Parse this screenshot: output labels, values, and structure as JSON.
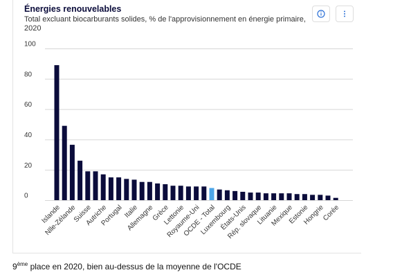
{
  "chart_data": {
    "type": "bar",
    "title": "Énergies renouvelables",
    "subtitle": "Total excluant biocarburants solides, % de l'approvisionnement en énergie primaire, 2020",
    "categories": [
      "Islande",
      null,
      "Nlle-Zélande",
      null,
      "Suisse",
      null,
      "Autriche",
      null,
      "Portugal",
      null,
      "Italie",
      null,
      "Allemagne",
      null,
      "Grèce",
      null,
      "Lettonie",
      null,
      "Royaume-Uni",
      null,
      "OCDE - Total",
      null,
      "Luxembourg",
      null,
      "États-Unis",
      null,
      "Rép. slovaque",
      null,
      "Lituanie",
      null,
      "Mexique",
      null,
      "Estonie",
      null,
      "Hongrie",
      null,
      "Corée"
    ],
    "values": [
      89,
      49,
      36.5,
      26,
      19,
      19,
      17,
      15,
      15,
      14,
      13.5,
      12,
      12,
      11,
      10.5,
      9.5,
      9.5,
      9,
      9,
      9,
      8,
      7,
      6.5,
      6,
      5.5,
      5,
      5,
      4.5,
      4.5,
      4.5,
      4.5,
      4,
      4,
      3.5,
      3.5,
      3,
      1.5
    ],
    "color": "#0b0c3b",
    "highlight_category": "OCDE - Total",
    "highlight_color": "#4da6e8",
    "ylim": [
      0,
      100
    ],
    "yticks": [
      0,
      20,
      40,
      60,
      80,
      100
    ],
    "grid": true
  },
  "caption": {
    "rank": "9",
    "suffix": "ème",
    "text": " place en 2020, bien au-dessus de la moyenne de l'OCDE"
  }
}
